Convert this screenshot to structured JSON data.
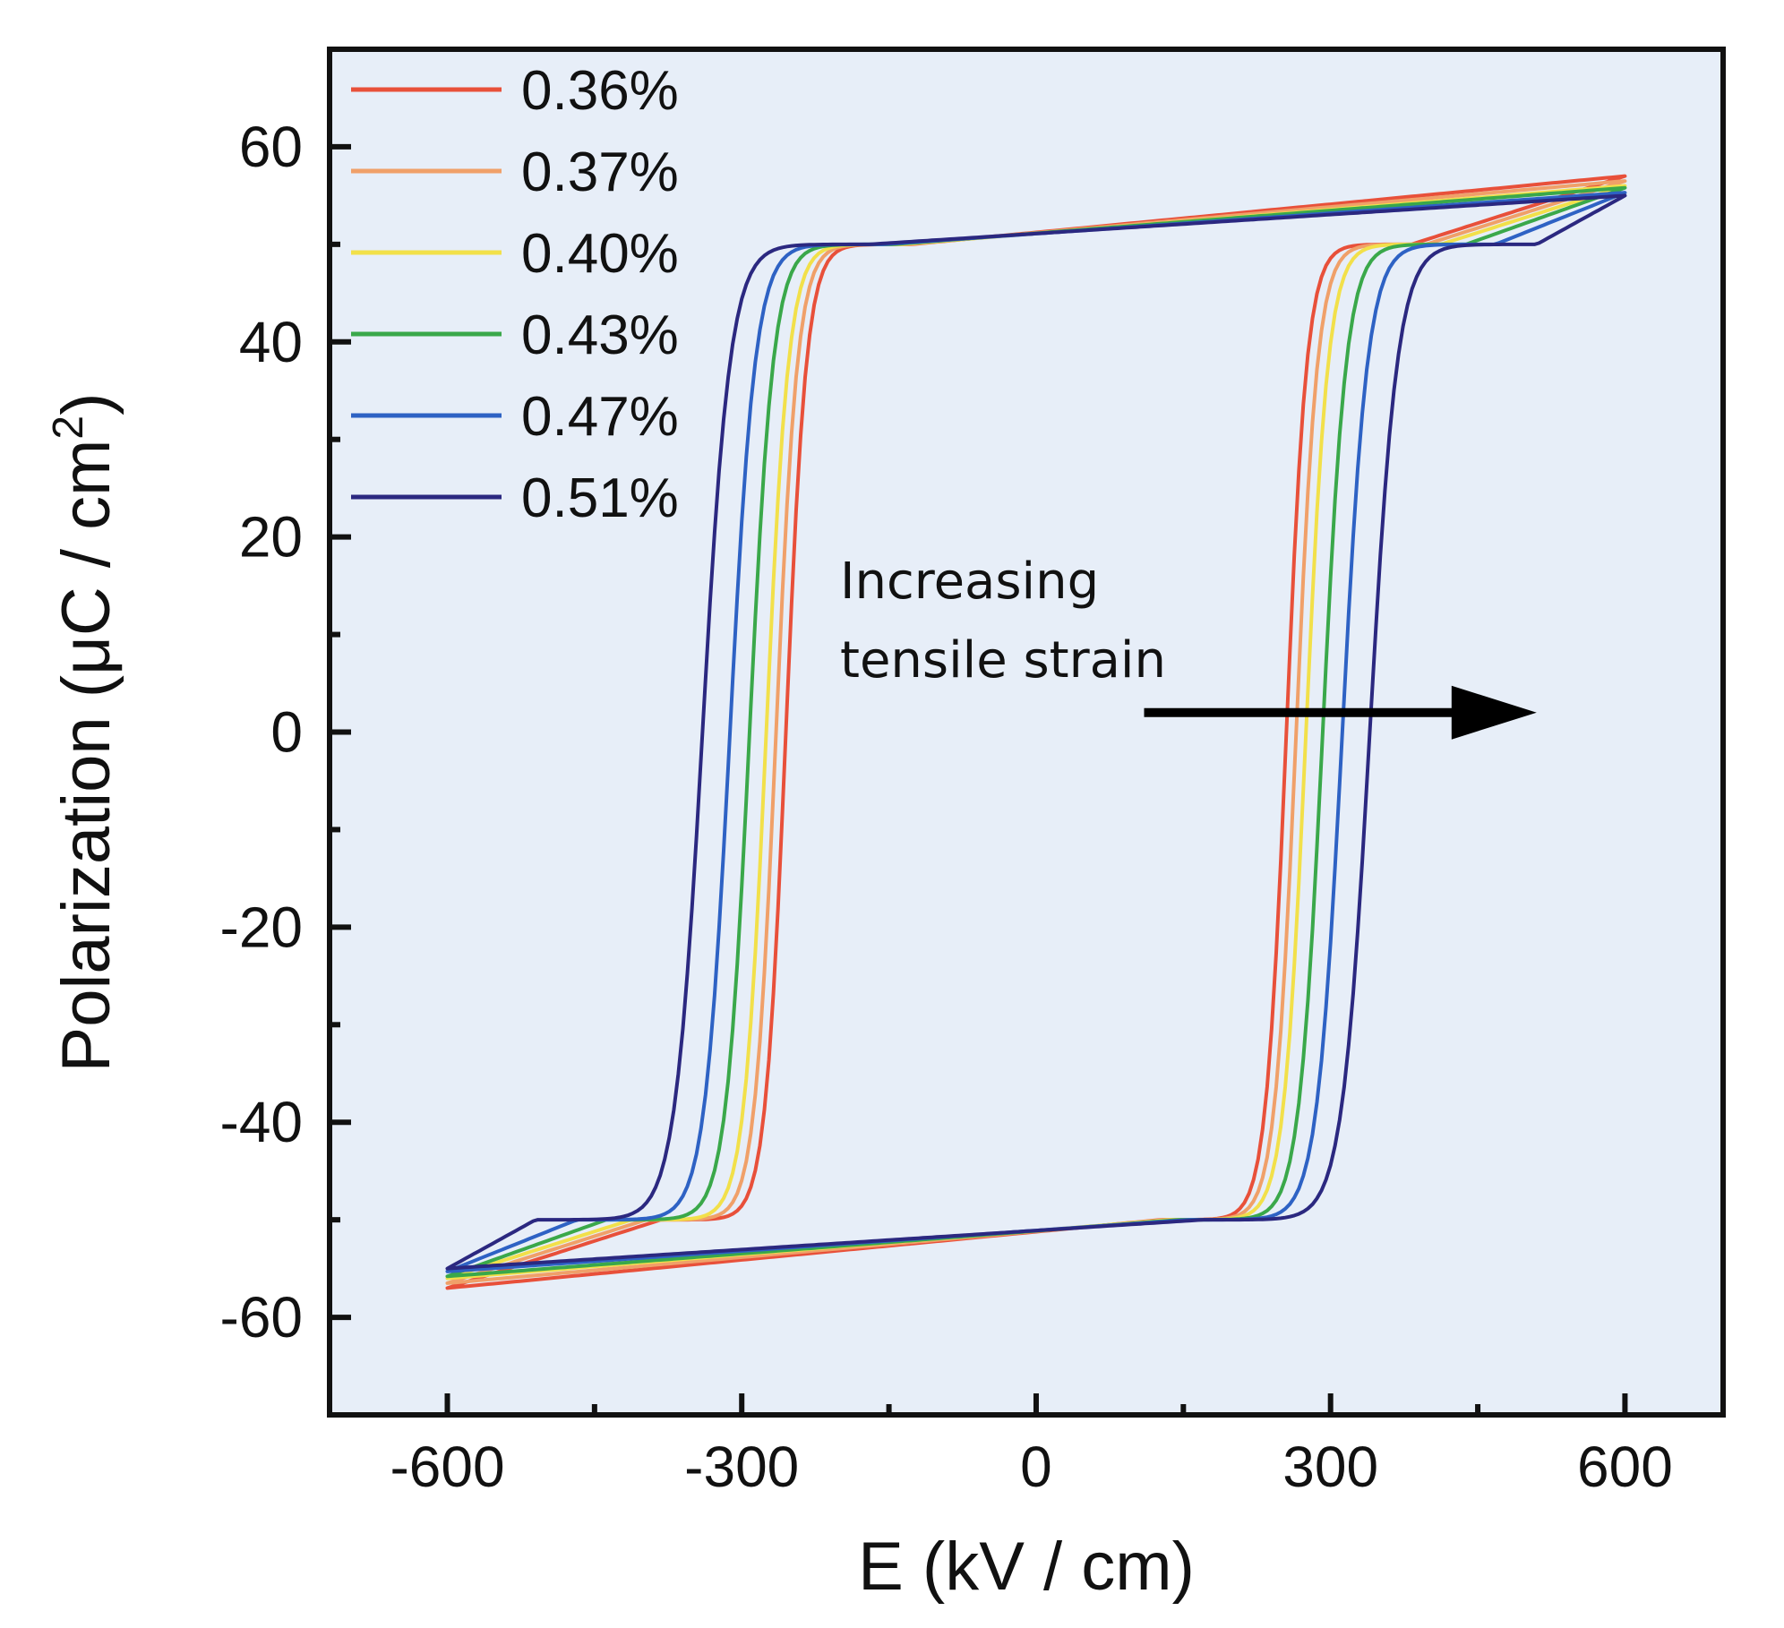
{
  "chart_data": {
    "type": "line",
    "xlabel": "E (kV / cm)",
    "ylabel_main": "Polarization (μC / cm",
    "ylabel_sup": "2",
    "ylabel_close": ")",
    "xlim": [
      -720,
      700
    ],
    "ylim": [
      -70,
      70
    ],
    "x_ticks": [
      -600,
      -300,
      0,
      300,
      600
    ],
    "x_tick_labels": [
      "-600",
      "-300",
      "0",
      "300",
      "600"
    ],
    "y_ticks": [
      -60,
      -40,
      -20,
      0,
      20,
      40,
      60
    ],
    "y_tick_labels": [
      "-60",
      "-40",
      "-20",
      "0",
      "20",
      "40",
      "60"
    ],
    "grid": false,
    "plot_background": "#e7eef8",
    "legend_position": "top-left",
    "annotation": {
      "line1": "Increasing",
      "line2": "tensile strain",
      "arrow_from": [
        110,
        2
      ],
      "arrow_to": [
        510,
        2
      ]
    },
    "series": [
      {
        "name": "0.36%",
        "color": "#e8503a",
        "coercive_field": 255,
        "p_sat": 57,
        "p_knee": 50
      },
      {
        "name": "0.37%",
        "color": "#f0a069",
        "coercive_field": 265,
        "p_sat": 56.5,
        "p_knee": 50
      },
      {
        "name": "0.40%",
        "color": "#f2e04a",
        "coercive_field": 275,
        "p_sat": 56,
        "p_knee": 50
      },
      {
        "name": "0.43%",
        "color": "#3aa84a",
        "coercive_field": 292,
        "p_sat": 55.8,
        "p_knee": 50
      },
      {
        "name": "0.47%",
        "color": "#2e62c4",
        "coercive_field": 312,
        "p_sat": 55.3,
        "p_knee": 50
      },
      {
        "name": "0.51%",
        "color": "#2b2880",
        "coercive_field": 340,
        "p_sat": 55,
        "p_knee": 50
      }
    ]
  }
}
